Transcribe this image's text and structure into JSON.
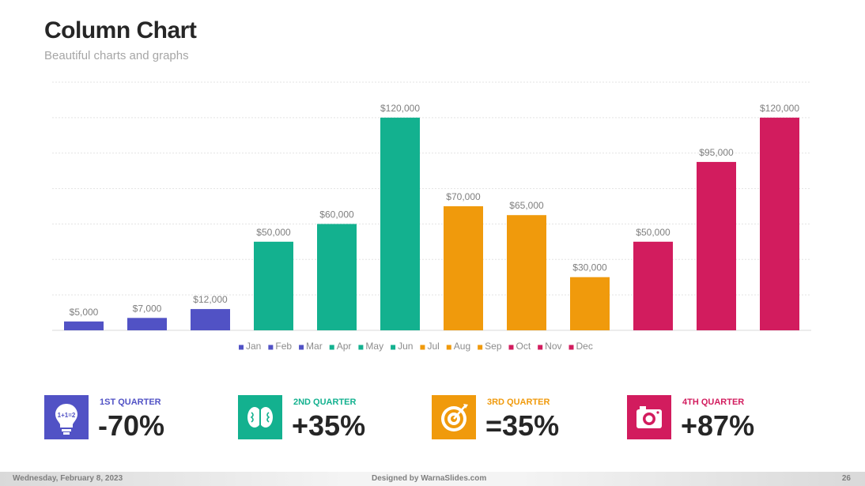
{
  "slide": {
    "title": "Column Chart",
    "subtitle": "Beautiful charts and graphs"
  },
  "chart_data": {
    "type": "bar",
    "title": "",
    "xlabel": "",
    "ylabel": "",
    "ylim": [
      0,
      140000
    ],
    "grid": true,
    "legend_position": "bottom",
    "categories": [
      "Jan",
      "Feb",
      "Mar",
      "Apr",
      "May",
      "Jun",
      "Jul",
      "Aug",
      "Sep",
      "Oct",
      "Nov",
      "Dec"
    ],
    "values": [
      5000,
      7000,
      12000,
      50000,
      60000,
      120000,
      70000,
      65000,
      30000,
      50000,
      95000,
      120000
    ],
    "data_labels": [
      "$5,000",
      "$7,000",
      "$12,000",
      "$50,000",
      "$60,000",
      "$120,000",
      "$70,000",
      "$65,000",
      "$30,000",
      "$50,000",
      "$95,000",
      "$120,000"
    ],
    "colors": [
      "#5152c5",
      "#5152c5",
      "#5152c5",
      "#13b18f",
      "#13b18f",
      "#13b18f",
      "#f09a0c",
      "#f09a0c",
      "#f09a0c",
      "#d21c5e",
      "#d21c5e",
      "#d21c5e"
    ]
  },
  "quarters": [
    {
      "label": "1ST QUARTER",
      "value": "-70%",
      "color": "#5152c5",
      "icon": "lightbulb-icon"
    },
    {
      "label": "2ND QUARTER",
      "value": "+35%",
      "color": "#13b18f",
      "icon": "brain-icon"
    },
    {
      "label": "3RD QUARTER",
      "value": "=35%",
      "color": "#f09a0c",
      "icon": "target-icon"
    },
    {
      "label": "4TH QUARTER",
      "value": "+87%",
      "color": "#d21c5e",
      "icon": "camera-icon"
    }
  ],
  "footer": {
    "date": "Wednesday, February 8, 2023",
    "credit": "Designed by WarnaSlides.com",
    "page": "26"
  }
}
